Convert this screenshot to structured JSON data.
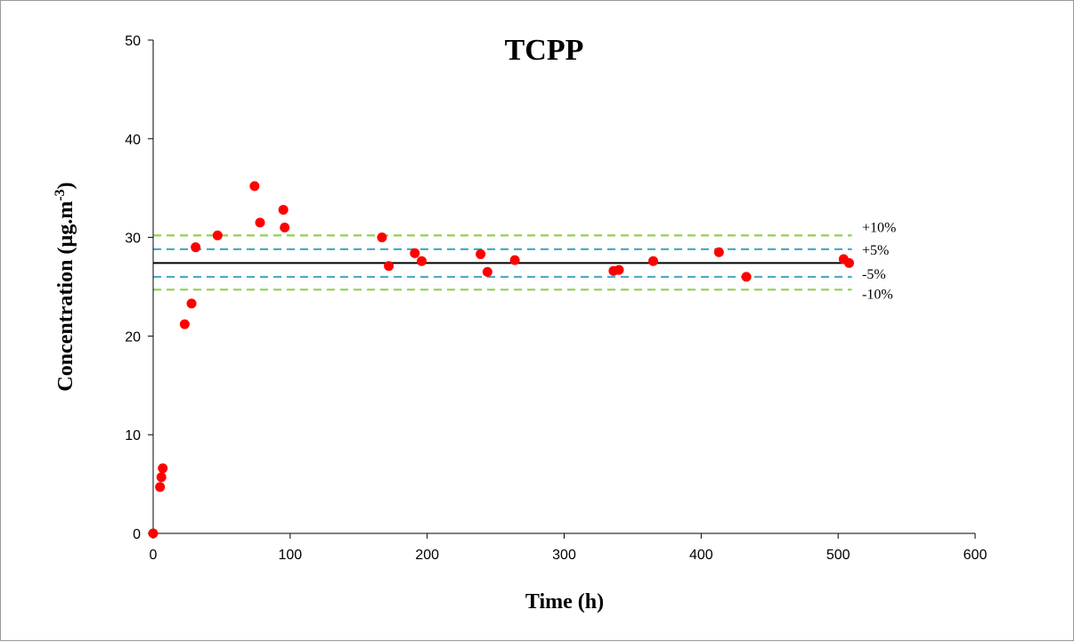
{
  "chart_data": {
    "type": "scatter",
    "title": "TCPP",
    "xlabel": "Time (h)",
    "ylabel_main": "Concentration (µg.m",
    "ylabel_sup": "-3",
    "ylabel_close": ")",
    "xlim": [
      0,
      600
    ],
    "ylim": [
      0,
      50
    ],
    "x_ticks": [
      0,
      100,
      200,
      300,
      400,
      500,
      600
    ],
    "y_ticks": [
      0,
      10,
      20,
      30,
      40,
      50
    ],
    "grid": false,
    "reference_line": {
      "y": 27.4,
      "color": "#000000"
    },
    "bands": [
      {
        "label": "+10%",
        "y": 30.2,
        "color": "#92d050"
      },
      {
        "label": "+5%",
        "y": 28.8,
        "color": "#4bacc6"
      },
      {
        "label": "-5%",
        "y": 26.0,
        "color": "#4bacc6"
      },
      {
        "label": "-10%",
        "y": 24.7,
        "color": "#92d050"
      }
    ],
    "marker_color": "#ff0000",
    "points": [
      [
        0,
        0
      ],
      [
        5,
        4.7
      ],
      [
        6,
        5.7
      ],
      [
        7,
        6.6
      ],
      [
        23,
        21.2
      ],
      [
        28,
        23.3
      ],
      [
        31,
        29.0
      ],
      [
        47,
        30.2
      ],
      [
        74,
        35.2
      ],
      [
        78,
        31.5
      ],
      [
        95,
        32.8
      ],
      [
        96,
        31.0
      ],
      [
        167,
        30.0
      ],
      [
        172,
        27.1
      ],
      [
        191,
        28.4
      ],
      [
        196,
        27.6
      ],
      [
        239,
        28.3
      ],
      [
        244,
        26.5
      ],
      [
        264,
        27.7
      ],
      [
        336,
        26.6
      ],
      [
        340,
        26.7
      ],
      [
        365,
        27.6
      ],
      [
        413,
        28.5
      ],
      [
        433,
        26.0
      ],
      [
        504,
        27.8
      ],
      [
        508,
        27.4
      ]
    ]
  }
}
